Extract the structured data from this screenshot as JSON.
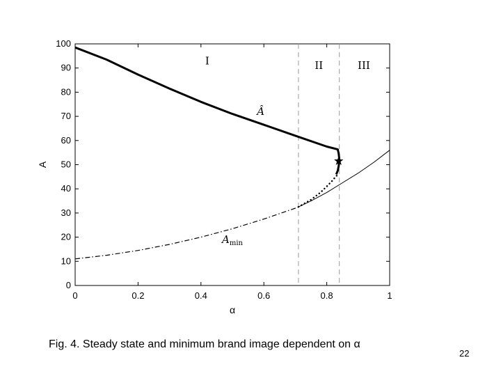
{
  "caption": "Fig. 4. Steady state and minimum brand image dependent on α",
  "page_number": "22",
  "chart_data": {
    "type": "line",
    "title": "",
    "xlabel": "α",
    "ylabel": "A",
    "xlim": [
      0,
      1
    ],
    "ylim": [
      0,
      100
    ],
    "xticks": [
      0,
      0.2,
      0.4,
      0.6,
      0.8,
      1
    ],
    "xtick_labels": [
      "0",
      "0.2",
      "0.4",
      "0.6",
      "0.8",
      "1"
    ],
    "yticks": [
      0,
      10,
      20,
      30,
      40,
      50,
      60,
      70,
      80,
      90,
      100
    ],
    "ytick_labels": [
      "0",
      "10",
      "20",
      "30",
      "40",
      "50",
      "60",
      "70",
      "80",
      "90",
      "100"
    ],
    "grid": false,
    "regions": {
      "boundaries": [
        0.71,
        0.84
      ],
      "labels": [
        {
          "text": "I",
          "x": 0.42,
          "y": 93
        },
        {
          "text": "II",
          "x": 0.775,
          "y": 91
        },
        {
          "text": "III",
          "x": 0.918,
          "y": 91
        }
      ]
    },
    "series": [
      {
        "label": "Â",
        "label_pos": {
          "x": 0.59,
          "y": 72
        },
        "style": "solid-thick",
        "x": [
          0,
          0.1,
          0.2,
          0.3,
          0.4,
          0.5,
          0.6,
          0.7,
          0.8,
          0.835,
          0.838,
          0.84,
          0.838,
          0.835,
          0.83
        ],
        "y": [
          98.5,
          93.5,
          87.3,
          81.5,
          76,
          71,
          66.5,
          62,
          57.5,
          56.3,
          54.5,
          52,
          49.5,
          47.5,
          46
        ]
      },
      {
        "label": "A",
        "label_sub": "min",
        "label_pos": {
          "x": 0.5,
          "y": 19
        },
        "style": "dashdot",
        "x": [
          0,
          0.1,
          0.2,
          0.3,
          0.4,
          0.5,
          0.6,
          0.7,
          0.71
        ],
        "y": [
          11,
          12.5,
          14.5,
          17,
          20,
          23.5,
          27.5,
          32,
          32.5
        ]
      },
      {
        "style": "dotted",
        "x": [
          0.71,
          0.75,
          0.78,
          0.8,
          0.815,
          0.825,
          0.832
        ],
        "y": [
          32.5,
          35.5,
          38.5,
          41,
          43,
          44.5,
          45.5
        ]
      },
      {
        "style": "solid-thin",
        "x": [
          0.71,
          0.75,
          0.8,
          0.85,
          0.9,
          0.95,
          1.0
        ],
        "y": [
          32.5,
          35,
          38.5,
          42.5,
          46.5,
          51,
          56
        ]
      }
    ],
    "markers": [
      {
        "shape": "star",
        "x": 0.838,
        "y": 51.5
      }
    ]
  }
}
